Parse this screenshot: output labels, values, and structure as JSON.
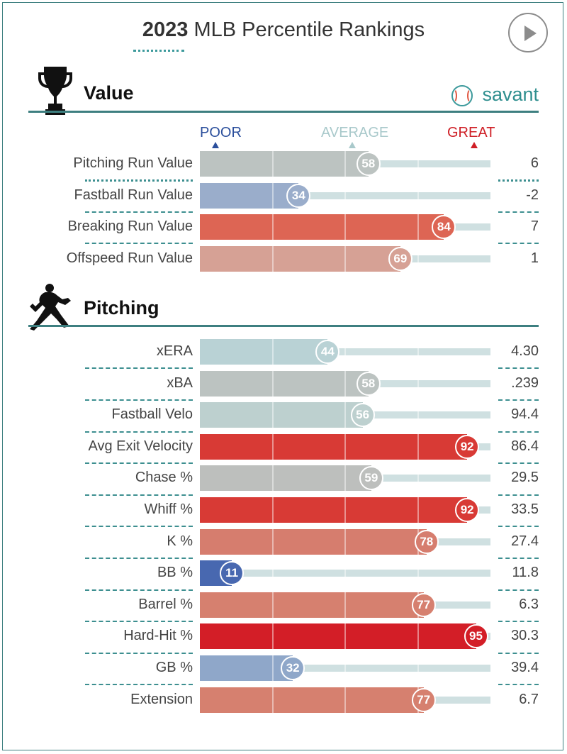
{
  "header": {
    "year": "2023",
    "title_rest": "MLB Percentile Rankings"
  },
  "sections": {
    "value": {
      "title": "Value"
    },
    "pitching": {
      "title": "Pitching"
    },
    "brand": "savant"
  },
  "scale": {
    "poor": "POOR",
    "average": "AVERAGE",
    "great": "GREAT",
    "poor_color": "#2b4f9c",
    "average_color": "#a9c9cb",
    "great_color": "#cf1f26"
  },
  "chart_data": [
    {
      "type": "bar",
      "section": "Value",
      "xlim": [
        0,
        100
      ],
      "rows": [
        {
          "label": "Pitching Run Value",
          "percentile": 58,
          "value": "6",
          "color": "#bcc3c1"
        },
        {
          "label": "Fastball Run Value",
          "percentile": 34,
          "value": "-2",
          "color": "#9aadcb"
        },
        {
          "label": "Breaking Run Value",
          "percentile": 84,
          "value": "7",
          "color": "#dd6554"
        },
        {
          "label": "Offspeed Run Value",
          "percentile": 69,
          "value": "1",
          "color": "#d6a195"
        }
      ]
    },
    {
      "type": "bar",
      "section": "Pitching",
      "xlim": [
        0,
        100
      ],
      "rows": [
        {
          "label": "xERA",
          "percentile": 44,
          "value": "4.30",
          "color": "#b9d2d5"
        },
        {
          "label": "xBA",
          "percentile": 58,
          "value": ".239",
          "color": "#bcc3c1"
        },
        {
          "label": "Fastball Velo",
          "percentile": 56,
          "value": "94.4",
          "color": "#bdd0cf"
        },
        {
          "label": "Avg Exit Velocity",
          "percentile": 92,
          "value": "86.4",
          "color": "#d83a35"
        },
        {
          "label": "Chase %",
          "percentile": 59,
          "value": "29.5",
          "color": "#bdbfbd"
        },
        {
          "label": "Whiff %",
          "percentile": 92,
          "value": "33.5",
          "color": "#d83a35"
        },
        {
          "label": "K %",
          "percentile": 78,
          "value": "27.4",
          "color": "#d67d6e"
        },
        {
          "label": "BB %",
          "percentile": 11,
          "value": "11.8",
          "color": "#4868b0"
        },
        {
          "label": "Barrel %",
          "percentile": 77,
          "value": "6.3",
          "color": "#d6806f"
        },
        {
          "label": "Hard-Hit %",
          "percentile": 95,
          "value": "30.3",
          "color": "#d31e27"
        },
        {
          "label": "GB %",
          "percentile": 32,
          "value": "39.4",
          "color": "#8fa7c9"
        },
        {
          "label": "Extension",
          "percentile": 77,
          "value": "6.7",
          "color": "#d6806f"
        }
      ]
    }
  ]
}
